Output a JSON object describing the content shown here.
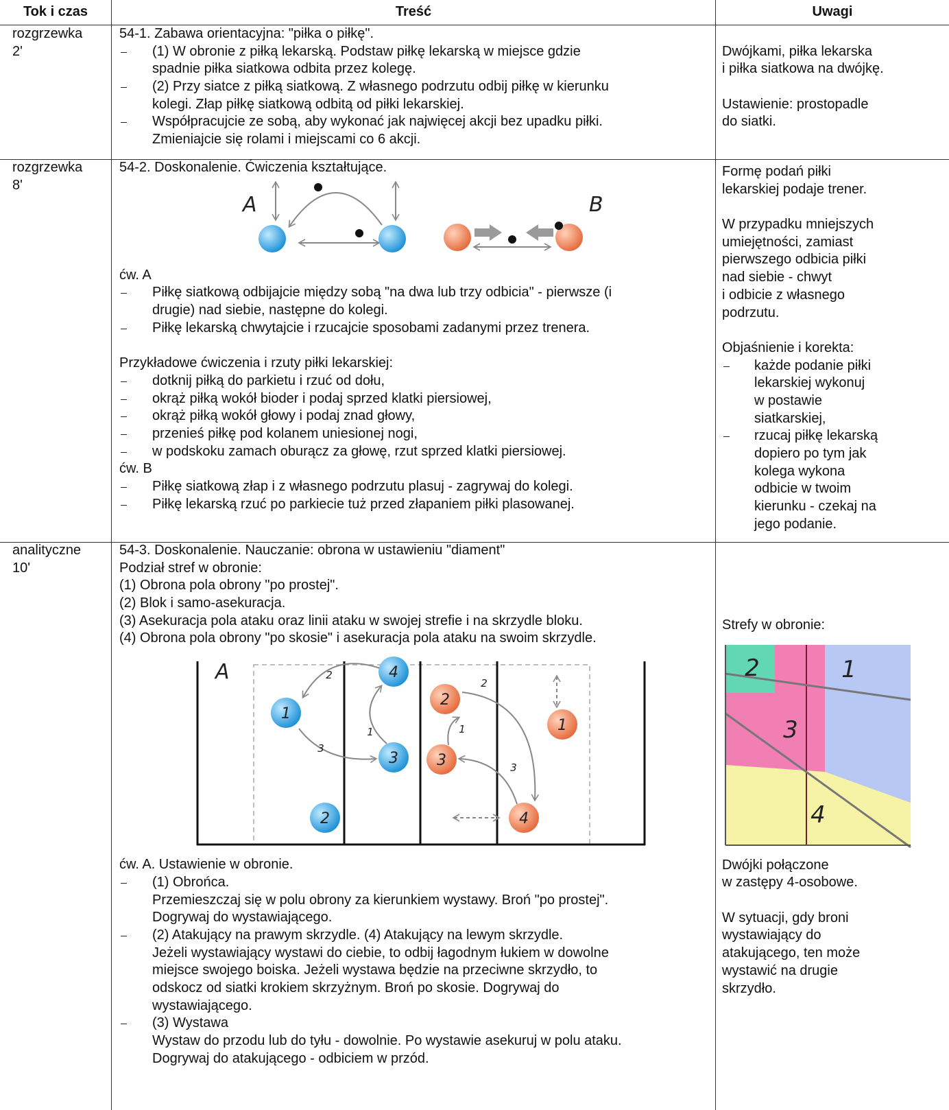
{
  "header": {
    "col1": "Tok i czas",
    "col2": "Treść",
    "col3": "Uwagi"
  },
  "rows": [
    {
      "phase": "rozgrzewka",
      "time": "2'",
      "content": [
        [
          {
            "text": [
              "54-1. Zabawa orientacyjna: \"piłka o piłkę\"."
            ]
          },
          {
            "list": [
              [
                "(1) W obronie z piłką lekarską. Podstaw piłkę lekarską w miejsce gdzie",
                "spadnie piłka siatkowa odbita przez kolegę."
              ],
              [
                "(2) Przy siatce z piłką siatkową. Z własnego podrzutu odbij piłkę w kierunku",
                "kolegi. Złap piłkę siatkową odbitą od piłki lekarskiej."
              ],
              [
                "Współpracujcie ze sobą, aby wykonać jak najwięcej akcji bez upadku piłki.",
                "Zmieniajcie się rolami i miejscami co 6 akcji."
              ]
            ]
          }
        ]
      ],
      "notes": [
        [
          {
            "text": [
              "Dwójkami, piłka lekarska",
              "i piłka siatkowa na dwójkę."
            ]
          }
        ],
        [
          {
            "text": [
              "Ustawienie: prostopadle",
              "do siatki."
            ]
          }
        ]
      ]
    },
    {
      "phase": "rozgrzewka",
      "time": "8'",
      "content": [
        [
          {
            "text": [
              "54-2. Doskonalenie. Ćwiczenia kształtujące."
            ]
          },
          {
            "drill_figure": {
              "labels": [
                "A",
                "B"
              ]
            }
          },
          {
            "text": [
              "ćw. A"
            ]
          },
          {
            "list": [
              [
                "Piłkę siatkową odbijajcie między sobą \"na dwa lub trzy odbicia\" - pierwsze (i",
                "drugie) nad siebie, następne do kolegi."
              ],
              [
                "Piłkę lekarską chwytajcie i rzucajcie sposobami zadanymi przez trenera."
              ]
            ]
          }
        ],
        [
          {
            "text": [
              "Przykładowe ćwiczenia i rzuty piłki lekarskiej:"
            ]
          },
          {
            "list": [
              [
                "dotknij piłką do parkietu i rzuć od dołu,"
              ],
              [
                "okrąż piłką wokół bioder i podaj sprzed klatki piersiowej,"
              ],
              [
                "okrąż piłką wokół głowy i podaj znad głowy,"
              ],
              [
                "przenieś piłkę pod kolanem uniesionej nogi,"
              ],
              [
                "w podskoku zamach oburącz za głowę, rzut sprzed klatki piersiowej."
              ]
            ]
          },
          {
            "text": [
              "ćw. B"
            ]
          },
          {
            "list": [
              [
                "Piłkę siatkową złap i z własnego podrzutu plasuj - zagrywaj do kolegi."
              ],
              [
                "Piłkę lekarską rzuć po parkiecie tuż przed złapaniem piłki plasowanej."
              ]
            ]
          }
        ]
      ],
      "notes": [
        [
          {
            "text": [
              "Formę podań piłki",
              "lekarskiej podaje trener."
            ]
          }
        ],
        [
          {
            "text": [
              "W przypadku mniejszych",
              "umiejętności, zamiast",
              "pierwszego odbicia piłki",
              "nad siebie - chwyt",
              "i odbicie z własnego",
              "podrzutu."
            ]
          }
        ],
        [
          {
            "text": [
              "Objaśnienie i korekta:"
            ]
          },
          {
            "list": [
              [
                "każde podanie piłki",
                "lekarskiej wykonuj",
                "w postawie",
                "siatkarskiej,"
              ],
              [
                "rzucaj piłkę lekarską",
                "dopiero po tym jak",
                "kolega wykona",
                "odbicie w twoim",
                "kierunku - czekaj na",
                "jego podanie."
              ]
            ]
          }
        ]
      ]
    },
    {
      "phase": "analityczne",
      "time": "10'",
      "content": [
        [
          {
            "text": [
              "54-3. Doskonalenie. Nauczanie: obrona w ustawieniu \"diament\"",
              "Podział stref w obronie:",
              "(1) Obrona pola obrony \"po prostej\".",
              "(2) Blok i samo-asekuracja.",
              "(3) Asekuracja pola ataku oraz linii ataku w swojej strefie i na skrzydle bloku.",
              "(4) Obrona pola obrony \"po skosie\" i asekuracja pola ataku na swoim skrzydle."
            ]
          },
          {
            "court_figure": {
              "side_label": "A",
              "blue": [
                "1",
                "4",
                "3",
                "2"
              ],
              "orange": [
                "2",
                "3",
                "1",
                "4"
              ],
              "arrow_labels": [
                "2",
                "1",
                "3",
                "2",
                "1",
                "3"
              ]
            }
          },
          {
            "text": [
              "ćw. A. Ustawienie w obronie."
            ]
          },
          {
            "list": [
              [
                "(1) Obrońca.",
                "Przemieszczaj się w polu obrony za kierunkiem wystawy. Broń \"po prostej\".",
                "Dogrywaj do wystawiającego."
              ],
              [
                "(2) Atakujący na prawym skrzydle. (4) Atakujący na lewym skrzydle.",
                "Jeżeli wystawiający wystawi do ciebie, to odbij łagodnym łukiem w dowolne",
                "miejsce swojego boiska. Jeżeli wystawa będzie na przeciwne skrzydło, to",
                "odskocz od siatki krokiem skrzyżnym. Broń po skosie. Dogrywaj do",
                "wystawiającego."
              ],
              [
                "(3) Wystawa",
                "Wystaw do przodu lub do tyłu - dowolnie. Po wystawie asekuruj w polu ataku.",
                "Dogrywaj do atakującego - odbiciem w przód."
              ]
            ]
          }
        ]
      ],
      "notes": [
        [
          {
            "text": [
              "Strefy w obronie:"
            ]
          },
          {
            "zones_figure": {
              "labels": [
                "1",
                "2",
                "3",
                "4"
              ]
            }
          },
          {
            "text": [
              "Dwójki połączone",
              "w zastępy 4-osobowe."
            ]
          }
        ],
        [
          {
            "text": [
              "W sytuacji, gdy broni",
              "wystawiający do",
              "atakującego, ten może",
              "wystawić na drugie",
              "skrzydło."
            ]
          }
        ]
      ]
    }
  ]
}
